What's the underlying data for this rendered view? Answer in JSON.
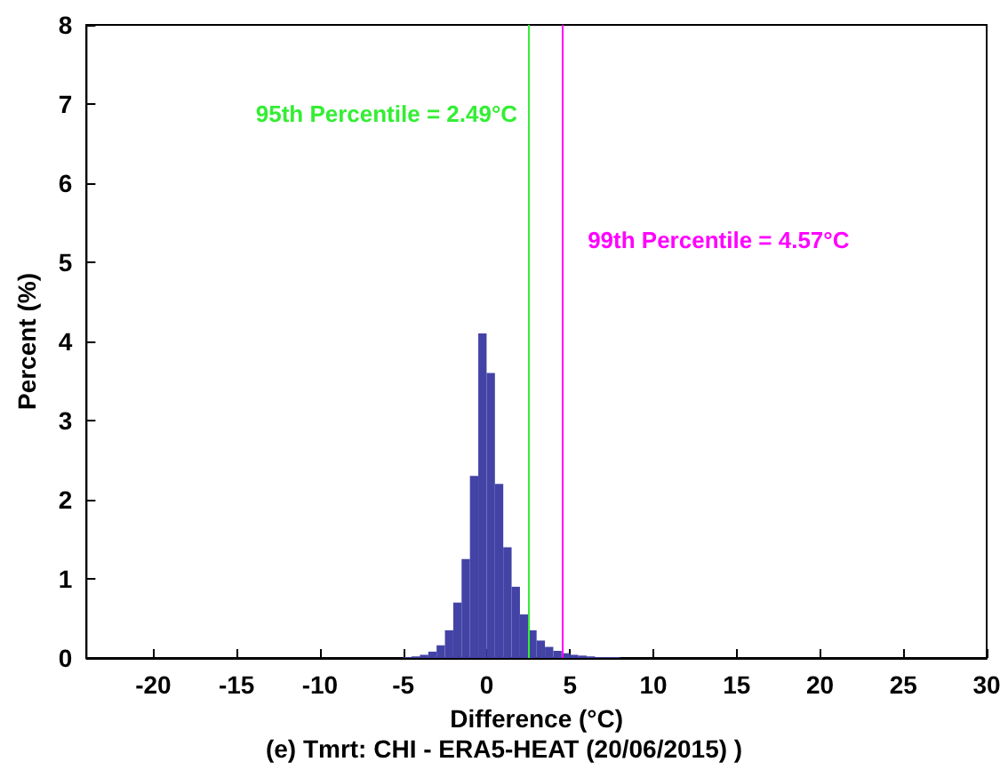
{
  "chart_data": {
    "type": "histogram",
    "title": "(e) Tmrt: CHI - ERA5-HEAT (20/06/2015) )",
    "xlabel": "Difference (°C)",
    "ylabel": "Percent (%)",
    "bins": [
      -5,
      -4.5,
      -4,
      -3.5,
      -3,
      -2.5,
      -2,
      -1.5,
      -1,
      -0.5,
      0,
      0.5,
      1,
      1.5,
      2,
      2.5,
      3,
      3.5,
      4,
      4.5,
      5,
      5.5,
      6,
      6.5,
      7,
      7.5,
      8
    ],
    "values": [
      0.01,
      0.02,
      0.04,
      0.08,
      0.16,
      0.35,
      0.7,
      1.25,
      2.3,
      4.1,
      3.6,
      2.2,
      1.4,
      0.9,
      0.55,
      0.35,
      0.22,
      0.14,
      0.09,
      0.06,
      0.04,
      0.03,
      0.02,
      0.01,
      0.01,
      0.01
    ],
    "color": "#4343a6",
    "xlim": [
      -24,
      30
    ],
    "xticks": [
      -20,
      -15,
      -10,
      -5,
      0,
      5,
      10,
      15,
      20,
      25,
      30
    ],
    "ylim": [
      0,
      8
    ],
    "yticks": [
      0,
      1,
      2,
      3,
      4,
      5,
      6,
      7,
      8
    ],
    "grid": false,
    "ref_lines": [
      {
        "axis": "x",
        "value": 2.49,
        "label": "95th Percentile = 2.49°C",
        "color": "#33ee33"
      },
      {
        "axis": "x",
        "value": 4.57,
        "label": "99th Percentile = 4.57°C",
        "color": "#ff00ff"
      }
    ]
  }
}
